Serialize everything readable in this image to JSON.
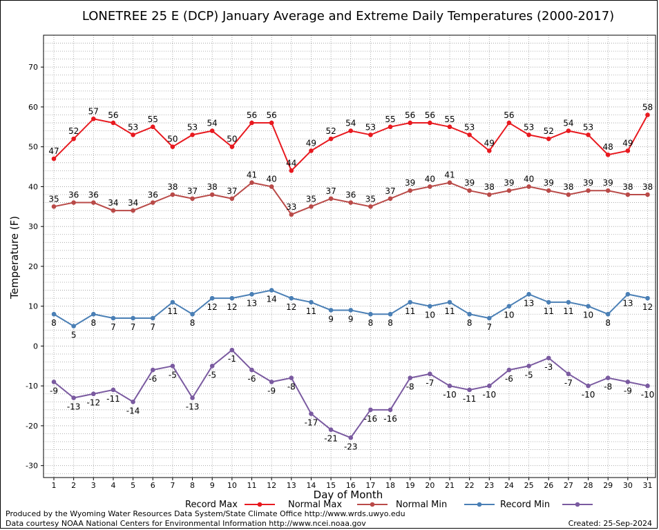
{
  "chart_data": {
    "type": "line",
    "title": "LONETREE 25 E (DCP) January Average and Extreme Daily Temperatures (2000-2017)",
    "xlabel": "Day of Month",
    "ylabel": "Temperature (F)",
    "categories": [
      1,
      2,
      3,
      4,
      5,
      6,
      7,
      8,
      9,
      10,
      11,
      12,
      13,
      14,
      15,
      16,
      17,
      18,
      19,
      20,
      21,
      22,
      23,
      24,
      25,
      26,
      27,
      28,
      29,
      30,
      31
    ],
    "ylim": [
      -33,
      78
    ],
    "yticks": [
      -30,
      -20,
      -10,
      0,
      10,
      20,
      30,
      40,
      50,
      60,
      70
    ],
    "grid": true,
    "legend_position": "bottom",
    "series": [
      {
        "name": "Record Max",
        "color": "#e8191f",
        "label_position": "above",
        "values": [
          47,
          52,
          57,
          56,
          53,
          55,
          50,
          53,
          54,
          50,
          56,
          56,
          44,
          49,
          52,
          54,
          53,
          55,
          56,
          56,
          55,
          53,
          49,
          56,
          53,
          52,
          54,
          53,
          48,
          49,
          58
        ]
      },
      {
        "name": "Normal Max",
        "color": "#b94a48",
        "label_position": "above",
        "values": [
          35,
          36,
          36,
          34,
          34,
          36,
          38,
          37,
          38,
          37,
          41,
          40,
          33,
          35,
          37,
          36,
          35,
          37,
          39,
          40,
          41,
          39,
          38,
          39,
          40,
          39,
          38,
          39,
          39,
          38,
          38
        ]
      },
      {
        "name": "Normal Min",
        "color": "#4a7fb5",
        "label_position": "below",
        "values": [
          8,
          5,
          8,
          7,
          7,
          7,
          11,
          8,
          12,
          12,
          13,
          14,
          12,
          11,
          9,
          9,
          8,
          8,
          11,
          10,
          11,
          8,
          7,
          10,
          13,
          11,
          11,
          10,
          8,
          13,
          12
        ]
      },
      {
        "name": "Record Min",
        "color": "#7a5aa0",
        "label_position": "below",
        "values": [
          -9,
          -13,
          -12,
          -11,
          -14,
          -6,
          -5,
          -13,
          -5,
          -1,
          -6,
          -9,
          -8,
          -17,
          -21,
          -23,
          -16,
          -16,
          -8,
          -7,
          -10,
          -11,
          -10,
          -6,
          -5,
          -3,
          -7,
          -10,
          -8,
          -9,
          -10
        ]
      }
    ]
  },
  "footer": {
    "produced_by": "Produced by the Wyoming Water Resources Data System/State Climate Office http://www.wrds.uwyo.edu",
    "data_courtesy": "Data courtesy NOAA National Centers for Environmental Information http://www.ncei.noaa.gov",
    "created": "Created:  25-Sep-2024"
  }
}
